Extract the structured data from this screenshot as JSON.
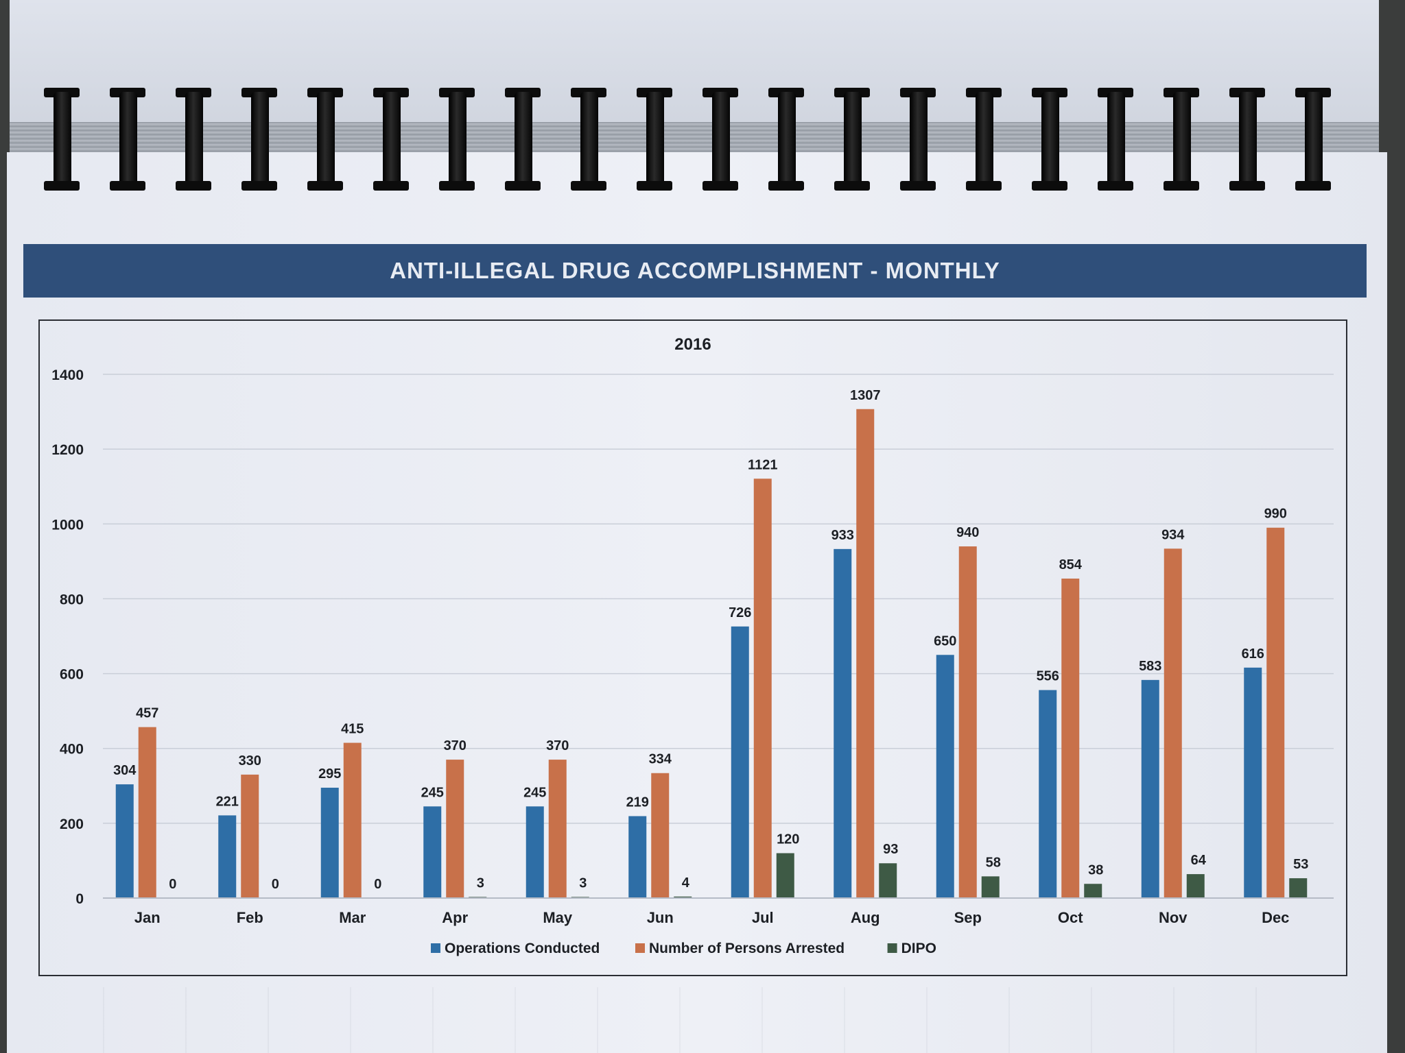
{
  "banner": {
    "title": "ANTI-ILLEGAL DRUG ACCOMPLISHMENT - MONTHLY"
  },
  "colors": {
    "banner": "#2f4f7a",
    "operations": "#2e6ea6",
    "arrested": "#c8714a",
    "dipo": "#3e5a45"
  },
  "chart_data": {
    "type": "bar",
    "title": "2016",
    "xlabel": "",
    "ylabel": "",
    "ylim": [
      0,
      1400
    ],
    "yticks": [
      0,
      200,
      400,
      600,
      800,
      1000,
      1200,
      1400
    ],
    "grid": true,
    "legend_position": "bottom",
    "categories": [
      "Jan",
      "Feb",
      "Mar",
      "Apr",
      "May",
      "Jun",
      "Jul",
      "Aug",
      "Sep",
      "Oct",
      "Nov",
      "Dec"
    ],
    "series": [
      {
        "name": "Operations Conducted",
        "color": "#2e6ea6",
        "values": [
          304,
          221,
          295,
          245,
          245,
          219,
          726,
          933,
          650,
          556,
          583,
          616
        ]
      },
      {
        "name": "Number of Persons Arrested",
        "color": "#c8714a",
        "values": [
          457,
          330,
          415,
          370,
          370,
          334,
          1121,
          1307,
          940,
          854,
          934,
          990
        ]
      },
      {
        "name": "DIPO",
        "color": "#3e5a45",
        "values": [
          0,
          0,
          0,
          3,
          3,
          4,
          120,
          93,
          58,
          38,
          64,
          53
        ]
      }
    ]
  }
}
